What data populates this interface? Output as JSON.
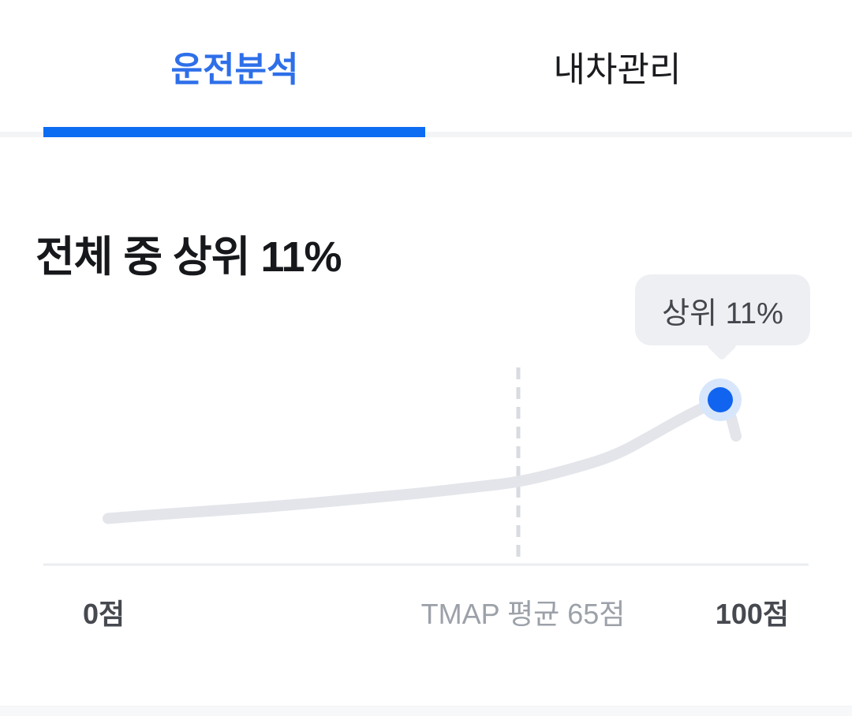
{
  "tabs": {
    "items": [
      {
        "label": "운전분석",
        "active": true
      },
      {
        "label": "내차관리",
        "active": false
      }
    ]
  },
  "main": {
    "title": "전체 중 상위 11%"
  },
  "tooltip": {
    "label": "상위 11%"
  },
  "axis": {
    "left": "0점",
    "center": "TMAP 평균 65점",
    "right": "100점"
  },
  "colors": {
    "accent": "#0C6CF2",
    "tab_active_text": "#2E6FE9",
    "tab_inactive_text": "#1A1B1E",
    "title_text": "#17181B",
    "dot": "#1064F0",
    "dot_halo": "#D8E6FB",
    "curve": "#E3E5EA",
    "dashed_line": "#D8DBE0",
    "baseline": "#EBEDF0",
    "tooltip_bg": "#EDEFF2",
    "tooltip_text": "#43464C",
    "axis_label_dark": "#46494F",
    "axis_label_gray": "#9CA1A9",
    "divider": "#F2F4F6",
    "bottom_strip": "#F7F8FA"
  },
  "chart_data": {
    "type": "line",
    "title": "전체 중 상위 11%",
    "x_range": [
      0,
      100
    ],
    "x_tick_labels": [
      "0점",
      "TMAP 평균 65점",
      "100점"
    ],
    "average_score": 65,
    "average_label": "TMAP 평균 65점",
    "marker": {
      "score": 97,
      "label": "상위 11%",
      "top_percent": 11
    },
    "legend": "none",
    "grid": "off",
    "points": [
      {
        "x": 0,
        "y": 0.28
      },
      {
        "x": 10,
        "y": 0.31
      },
      {
        "x": 20,
        "y": 0.335
      },
      {
        "x": 30,
        "y": 0.365
      },
      {
        "x": 40,
        "y": 0.4
      },
      {
        "x": 50,
        "y": 0.435
      },
      {
        "x": 58,
        "y": 0.47
      },
      {
        "x": 65,
        "y": 0.5
      },
      {
        "x": 72,
        "y": 0.565
      },
      {
        "x": 80,
        "y": 0.655
      },
      {
        "x": 86,
        "y": 0.78
      },
      {
        "x": 91,
        "y": 0.89
      },
      {
        "x": 95,
        "y": 0.965
      },
      {
        "x": 97,
        "y": 1.0
      },
      {
        "x": 98.5,
        "y": 0.93
      },
      {
        "x": 99.5,
        "y": 0.78
      }
    ]
  }
}
